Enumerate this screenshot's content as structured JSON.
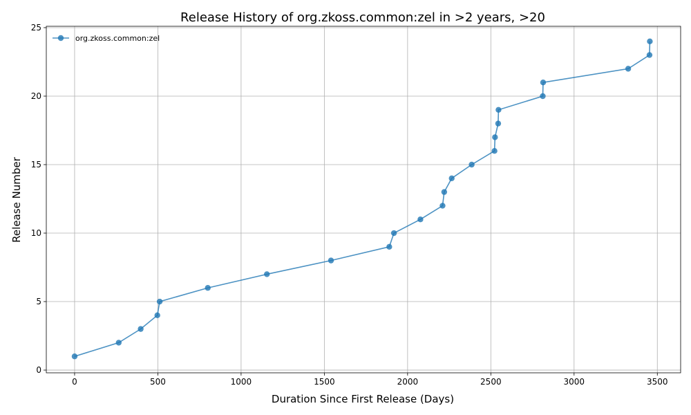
{
  "chart_data": {
    "type": "line",
    "title": "Release History of org.zkoss.common:zel in >2 years, >20",
    "xlabel": "Duration Since First Release (Days)",
    "ylabel": "Release Number",
    "xlim": [
      -170,
      3640
    ],
    "ylim": [
      -0.2,
      25.1
    ],
    "xticks": [
      0,
      500,
      1000,
      1500,
      2000,
      2500,
      3000,
      3500
    ],
    "yticks": [
      0,
      5,
      10,
      15,
      20,
      25
    ],
    "grid": true,
    "legend_position": "top-left",
    "series": [
      {
        "name": "org.zkoss.common:zel",
        "color": "#1f77b4",
        "marker": "circle",
        "points": [
          [
            0,
            1
          ],
          [
            265,
            2
          ],
          [
            397,
            3
          ],
          [
            497,
            4
          ],
          [
            511,
            5
          ],
          [
            800,
            6
          ],
          [
            1155,
            7
          ],
          [
            1540,
            8
          ],
          [
            1890,
            9
          ],
          [
            1918,
            10
          ],
          [
            2077,
            11
          ],
          [
            2210,
            12
          ],
          [
            2220,
            13
          ],
          [
            2265,
            14
          ],
          [
            2385,
            15
          ],
          [
            2522,
            16
          ],
          [
            2525,
            17
          ],
          [
            2544,
            18
          ],
          [
            2546,
            19
          ],
          [
            2812,
            20
          ],
          [
            2814,
            21
          ],
          [
            3325,
            22
          ],
          [
            3453,
            23
          ],
          [
            3455,
            24
          ]
        ]
      }
    ]
  }
}
